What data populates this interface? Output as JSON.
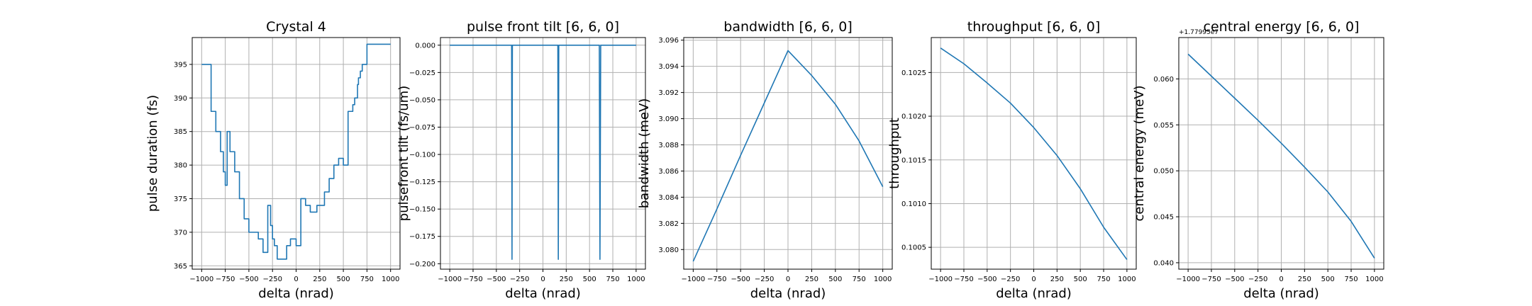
{
  "colors": {
    "line": "#1f77b4",
    "grid": "#b0b0b0",
    "axes": "#000000"
  },
  "chart_data": [
    {
      "type": "line",
      "title": "Crystal 4",
      "xlabel": "delta (nrad)",
      "ylabel": "pulse duration (fs)",
      "xlim": [
        -1100,
        1100
      ],
      "ylim": [
        364.5,
        399
      ],
      "x_ticks": [
        -1000,
        -750,
        -500,
        -250,
        0,
        250,
        500,
        750,
        1000
      ],
      "x_tick_labels": [
        "−1000",
        "−750",
        "−500",
        "−250",
        "0",
        "250",
        "500",
        "750",
        "1000"
      ],
      "y_ticks": [
        365,
        370,
        375,
        380,
        385,
        390,
        395
      ],
      "y_tick_labels": [
        "365",
        "370",
        "375",
        "380",
        "385",
        "390",
        "395"
      ],
      "offset_text": "",
      "grid": true,
      "step": true,
      "series": [
        {
          "x": [
            -1000,
            -900,
            -850,
            -800,
            -770,
            -750,
            -730,
            -700,
            -650,
            -600,
            -550,
            -500,
            -450,
            -400,
            -350,
            -300,
            -270,
            -250,
            -230,
            -200,
            -150,
            -100,
            -60,
            0,
            50,
            100,
            150,
            200,
            220,
            250,
            300,
            350,
            400,
            450,
            500,
            550,
            600,
            620,
            650,
            660,
            680,
            700,
            750,
            800,
            850,
            900,
            950,
            980,
            1000
          ],
          "y": [
            395,
            388,
            385,
            382,
            379,
            377,
            385,
            382,
            379,
            375,
            372,
            370,
            370,
            369,
            367,
            374,
            371,
            369,
            368,
            366,
            366,
            368,
            369,
            368,
            375,
            374,
            373,
            373,
            374,
            374,
            376,
            378,
            380,
            381,
            380,
            388,
            389,
            390,
            392,
            393,
            394,
            395,
            398,
            398,
            398,
            398,
            398,
            398,
            398
          ]
        }
      ]
    },
    {
      "type": "line",
      "title": "pulse front tilt [6, 6, 0]",
      "xlabel": "delta (nrad)",
      "ylabel": "pulsefront tilt (fs/um)",
      "xlim": [
        -1100,
        1100
      ],
      "ylim": [
        -0.205,
        0.007
      ],
      "x_ticks": [
        -1000,
        -750,
        -500,
        -250,
        0,
        250,
        500,
        750,
        1000
      ],
      "x_tick_labels": [
        "−1000",
        "−750",
        "−500",
        "−250",
        "0",
        "250",
        "500",
        "750",
        "1000"
      ],
      "y_ticks": [
        0.0,
        -0.025,
        -0.05,
        -0.075,
        -0.1,
        -0.125,
        -0.15,
        -0.175,
        -0.2
      ],
      "y_tick_labels": [
        "0.000",
        "−0.025",
        "−0.050",
        "−0.075",
        "−0.100",
        "−0.125",
        "−0.150",
        "−0.175",
        "−0.200"
      ],
      "offset_text": "",
      "grid": true,
      "step": false,
      "series": [
        {
          "x": [
            -1000,
            -336,
            -332,
            -328,
            160,
            165,
            170,
            605,
            612,
            620,
            1000
          ],
          "y": [
            0,
            0,
            -0.196,
            0,
            0,
            -0.196,
            0,
            0,
            -0.196,
            0,
            0
          ]
        }
      ]
    },
    {
      "type": "line",
      "title": "bandwidth [6, 6, 0]",
      "xlabel": "delta (nrad)",
      "ylabel": "bandwidth (meV)",
      "xlim": [
        -1100,
        1100
      ],
      "ylim": [
        3.0785,
        3.0962
      ],
      "x_ticks": [
        -1000,
        -750,
        -500,
        -250,
        0,
        250,
        500,
        750,
        1000
      ],
      "x_tick_labels": [
        "−1000",
        "−750",
        "−500",
        "−250",
        "0",
        "250",
        "500",
        "750",
        "1000"
      ],
      "y_ticks": [
        3.08,
        3.082,
        3.084,
        3.086,
        3.088,
        3.09,
        3.092,
        3.094,
        3.096
      ],
      "y_tick_labels": [
        "3.080",
        "3.082",
        "3.084",
        "3.086",
        "3.088",
        "3.090",
        "3.092",
        "3.094",
        "3.096"
      ],
      "offset_text": "",
      "grid": true,
      "step": false,
      "series": [
        {
          "x": [
            -1000,
            -750,
            -500,
            -250,
            0,
            250,
            500,
            750,
            1000
          ],
          "y": [
            3.0791,
            3.0831,
            3.0872,
            3.0912,
            3.0952,
            3.0933,
            3.0911,
            3.0883,
            3.0848
          ]
        }
      ]
    },
    {
      "type": "line",
      "title": "throughput [6, 6, 0]",
      "xlabel": "delta (nrad)",
      "ylabel": "throughput",
      "xlim": [
        -1100,
        1100
      ],
      "ylim": [
        0.10025,
        0.1029
      ],
      "x_ticks": [
        -1000,
        -750,
        -500,
        -250,
        0,
        250,
        500,
        750,
        1000
      ],
      "x_tick_labels": [
        "−1000",
        "−750",
        "−500",
        "−250",
        "0",
        "250",
        "500",
        "750",
        "1000"
      ],
      "y_ticks": [
        0.1005,
        0.101,
        0.1015,
        0.102,
        0.1025
      ],
      "y_tick_labels": [
        "0.1005",
        "0.1010",
        "0.1015",
        "0.1020",
        "0.1025"
      ],
      "offset_text": "",
      "grid": true,
      "step": false,
      "series": [
        {
          "x": [
            -1000,
            -750,
            -500,
            -250,
            0,
            250,
            500,
            750,
            1000
          ],
          "y": [
            0.10278,
            0.1026,
            0.10238,
            0.10215,
            0.10187,
            0.10155,
            0.10117,
            0.10073,
            0.10036
          ]
        }
      ]
    },
    {
      "type": "line",
      "title": "central energy [6, 6, 0]",
      "xlabel": "delta (nrad)",
      "ylabel": "central energy (meV)",
      "xlim": [
        -1100,
        1100
      ],
      "ylim": [
        0.0393,
        0.0645
      ],
      "x_ticks": [
        -1000,
        -750,
        -500,
        -250,
        0,
        250,
        500,
        750,
        1000
      ],
      "x_tick_labels": [
        "−1000",
        "−750",
        "−500",
        "−250",
        "0",
        "250",
        "500",
        "750",
        "1000"
      ],
      "y_ticks": [
        0.04,
        0.045,
        0.05,
        0.055,
        0.06
      ],
      "y_tick_labels": [
        "0.040",
        "0.045",
        "0.050",
        "0.055",
        "0.060"
      ],
      "offset_text": "+1.77995e7",
      "grid": true,
      "step": false,
      "series": [
        {
          "x": [
            -1000,
            -750,
            -500,
            -250,
            0,
            250,
            500,
            750,
            1000
          ],
          "y": [
            0.0627,
            0.0603,
            0.0579,
            0.0555,
            0.053,
            0.0504,
            0.0477,
            0.0445,
            0.0405
          ]
        }
      ]
    }
  ]
}
